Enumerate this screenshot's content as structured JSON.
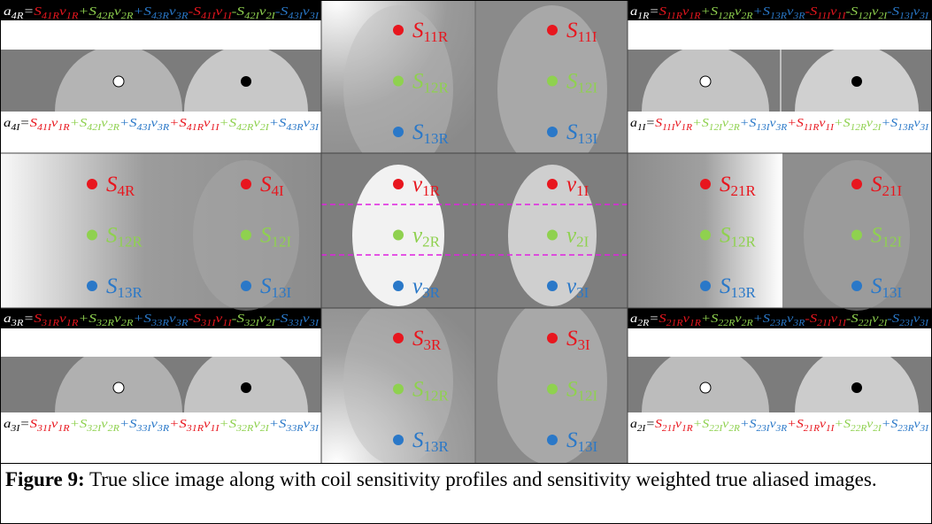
{
  "row_colors": [
    "#e8161e",
    "#8fd14f",
    "#2a78c8"
  ],
  "panels": [
    {
      "left": [
        {
          "b": "S",
          "s": "11R"
        },
        {
          "b": "S",
          "s": "12R"
        },
        {
          "b": "S",
          "s": "13R"
        }
      ],
      "right": [
        {
          "b": "S",
          "s": "11I"
        },
        {
          "b": "S",
          "s": "12I"
        },
        {
          "b": "S",
          "s": "13I"
        }
      ]
    },
    {
      "left": [
        {
          "b": "S",
          "s": "4R"
        },
        {
          "b": "S",
          "s": "12R"
        },
        {
          "b": "S",
          "s": "13R"
        }
      ],
      "right": [
        {
          "b": "S",
          "s": "4I"
        },
        {
          "b": "S",
          "s": "12I"
        },
        {
          "b": "S",
          "s": "13I"
        }
      ]
    },
    {
      "left": [
        {
          "b": "v",
          "s": "1R"
        },
        {
          "b": "v",
          "s": "2R"
        },
        {
          "b": "v",
          "s": "3R"
        }
      ],
      "right": [
        {
          "b": "v",
          "s": "1I"
        },
        {
          "b": "v",
          "s": "2I"
        },
        {
          "b": "v",
          "s": "3I"
        }
      ]
    },
    {
      "left": [
        {
          "b": "S",
          "s": "21R"
        },
        {
          "b": "S",
          "s": "12R"
        },
        {
          "b": "S",
          "s": "13R"
        }
      ],
      "right": [
        {
          "b": "S",
          "s": "21I"
        },
        {
          "b": "S",
          "s": "12I"
        },
        {
          "b": "S",
          "s": "13I"
        }
      ]
    },
    {
      "left": [
        {
          "b": "S",
          "s": "3R"
        },
        {
          "b": "S",
          "s": "12R"
        },
        {
          "b": "S",
          "s": "13R"
        }
      ],
      "right": [
        {
          "b": "S",
          "s": "3I"
        },
        {
          "b": "S",
          "s": "12I"
        },
        {
          "b": "S",
          "s": "13I"
        }
      ]
    }
  ],
  "equations": [
    {
      "lhs": {
        "b": "a",
        "s": "4R"
      },
      "eq": "=",
      "terms": [
        {
          "s": [
            "S",
            "41R"
          ],
          "v": [
            "v",
            "1R"
          ]
        },
        {
          "op": "+",
          "s": [
            "S",
            "42R"
          ],
          "v": [
            "v",
            "2R"
          ]
        },
        {
          "op": "+",
          "s": [
            "S",
            "43R"
          ],
          "v": [
            "v",
            "3R"
          ]
        },
        {
          "op": "-",
          "s": [
            "S",
            "41I"
          ],
          "v": [
            "v",
            "1I"
          ]
        },
        {
          "op": "-",
          "s": [
            "S",
            "42I"
          ],
          "v": [
            "v",
            "2I"
          ]
        },
        {
          "op": "-",
          "s": [
            "S",
            "43I"
          ],
          "v": [
            "v",
            "3I"
          ]
        }
      ]
    },
    {
      "lhs": {
        "b": "a",
        "s": "4I"
      },
      "eq": "=",
      "terms": [
        {
          "s": [
            "S",
            "41I"
          ],
          "v": [
            "v",
            "1R"
          ]
        },
        {
          "op": "+",
          "s": [
            "S",
            "42I"
          ],
          "v": [
            "v",
            "2R"
          ]
        },
        {
          "op": "+",
          "s": [
            "S",
            "43I"
          ],
          "v": [
            "v",
            "3R"
          ]
        },
        {
          "op": "+",
          "s": [
            "S",
            "41R"
          ],
          "v": [
            "v",
            "1I"
          ]
        },
        {
          "op": "+",
          "s": [
            "S",
            "42R"
          ],
          "v": [
            "v",
            "2I"
          ]
        },
        {
          "op": "+",
          "s": [
            "S",
            "43R"
          ],
          "v": [
            "v",
            "3I"
          ]
        }
      ]
    },
    {
      "lhs": {
        "b": "a",
        "s": "1R"
      },
      "eq": "=",
      "terms": [
        {
          "s": [
            "S",
            "11R"
          ],
          "v": [
            "v",
            "1R"
          ]
        },
        {
          "op": "+",
          "s": [
            "S",
            "12R"
          ],
          "v": [
            "v",
            "2R"
          ]
        },
        {
          "op": "+",
          "s": [
            "S",
            "13R"
          ],
          "v": [
            "v",
            "3R"
          ]
        },
        {
          "op": "-",
          "s": [
            "S",
            "11I"
          ],
          "v": [
            "v",
            "1I"
          ]
        },
        {
          "op": "-",
          "s": [
            "S",
            "12I"
          ],
          "v": [
            "v",
            "2I"
          ]
        },
        {
          "op": "-",
          "s": [
            "S",
            "13I"
          ],
          "v": [
            "v",
            "3I"
          ]
        }
      ]
    },
    {
      "lhs": {
        "b": "a",
        "s": "1I"
      },
      "eq": "=",
      "terms": [
        {
          "s": [
            "S",
            "11I"
          ],
          "v": [
            "v",
            "1R"
          ]
        },
        {
          "op": "+",
          "s": [
            "S",
            "12I"
          ],
          "v": [
            "v",
            "2R"
          ]
        },
        {
          "op": "+",
          "s": [
            "S",
            "13I"
          ],
          "v": [
            "v",
            "3R"
          ]
        },
        {
          "op": "+",
          "s": [
            "S",
            "11R"
          ],
          "v": [
            "v",
            "1I"
          ]
        },
        {
          "op": "+",
          "s": [
            "S",
            "12R"
          ],
          "v": [
            "v",
            "2I"
          ]
        },
        {
          "op": "+",
          "s": [
            "S",
            "13R"
          ],
          "v": [
            "v",
            "3I"
          ]
        }
      ]
    },
    {
      "lhs": {
        "b": "a",
        "s": "3R"
      },
      "eq": "=",
      "terms": [
        {
          "s": [
            "S",
            "31R"
          ],
          "v": [
            "v",
            "1R"
          ]
        },
        {
          "op": "+",
          "s": [
            "S",
            "32R"
          ],
          "v": [
            "v",
            "2R"
          ]
        },
        {
          "op": "+",
          "s": [
            "S",
            "33R"
          ],
          "v": [
            "v",
            "3R"
          ]
        },
        {
          "op": "-",
          "s": [
            "S",
            "31I"
          ],
          "v": [
            "v",
            "1I"
          ]
        },
        {
          "op": "-",
          "s": [
            "S",
            "32I"
          ],
          "v": [
            "v",
            "2I"
          ]
        },
        {
          "op": "-",
          "s": [
            "S",
            "33I"
          ],
          "v": [
            "v",
            "3I"
          ]
        }
      ]
    },
    {
      "lhs": {
        "b": "a",
        "s": "3I"
      },
      "eq": "=",
      "terms": [
        {
          "s": [
            "S",
            "31I"
          ],
          "v": [
            "v",
            "1R"
          ]
        },
        {
          "op": "+",
          "s": [
            "S",
            "32I"
          ],
          "v": [
            "v",
            "2R"
          ]
        },
        {
          "op": "+",
          "s": [
            "S",
            "33I"
          ],
          "v": [
            "v",
            "3R"
          ]
        },
        {
          "op": "+",
          "s": [
            "S",
            "31R"
          ],
          "v": [
            "v",
            "1I"
          ]
        },
        {
          "op": "+",
          "s": [
            "S",
            "32R"
          ],
          "v": [
            "v",
            "2I"
          ]
        },
        {
          "op": "+",
          "s": [
            "S",
            "33R"
          ],
          "v": [
            "v",
            "3I"
          ]
        }
      ]
    },
    {
      "lhs": {
        "b": "a",
        "s": "2R"
      },
      "eq": "=",
      "terms": [
        {
          "s": [
            "S",
            "21R"
          ],
          "v": [
            "v",
            "1R"
          ]
        },
        {
          "op": "+",
          "s": [
            "S",
            "22R"
          ],
          "v": [
            "v",
            "2R"
          ]
        },
        {
          "op": "+",
          "s": [
            "S",
            "23R"
          ],
          "v": [
            "v",
            "3R"
          ]
        },
        {
          "op": "-",
          "s": [
            "S",
            "21I"
          ],
          "v": [
            "v",
            "1I"
          ]
        },
        {
          "op": "-",
          "s": [
            "S",
            "22I"
          ],
          "v": [
            "v",
            "2I"
          ]
        },
        {
          "op": "-",
          "s": [
            "S",
            "23I"
          ],
          "v": [
            "v",
            "3I"
          ]
        }
      ]
    },
    {
      "lhs": {
        "b": "a",
        "s": "2I"
      },
      "eq": "=",
      "terms": [
        {
          "s": [
            "S",
            "21I"
          ],
          "v": [
            "v",
            "1R"
          ]
        },
        {
          "op": "+",
          "s": [
            "S",
            "22I"
          ],
          "v": [
            "v",
            "2R"
          ]
        },
        {
          "op": "+",
          "s": [
            "S",
            "23I"
          ],
          "v": [
            "v",
            "3R"
          ]
        },
        {
          "op": "+",
          "s": [
            "S",
            "21R"
          ],
          "v": [
            "v",
            "1I"
          ]
        },
        {
          "op": "+",
          "s": [
            "S",
            "22R"
          ],
          "v": [
            "v",
            "2I"
          ]
        },
        {
          "op": "+",
          "s": [
            "S",
            "23R"
          ],
          "v": [
            "v",
            "3I"
          ]
        }
      ]
    }
  ],
  "caption": {
    "label": "Figure 9:",
    "text": "True slice image along with coil sensitivity profiles and sensitivity weighted true aliased images."
  }
}
